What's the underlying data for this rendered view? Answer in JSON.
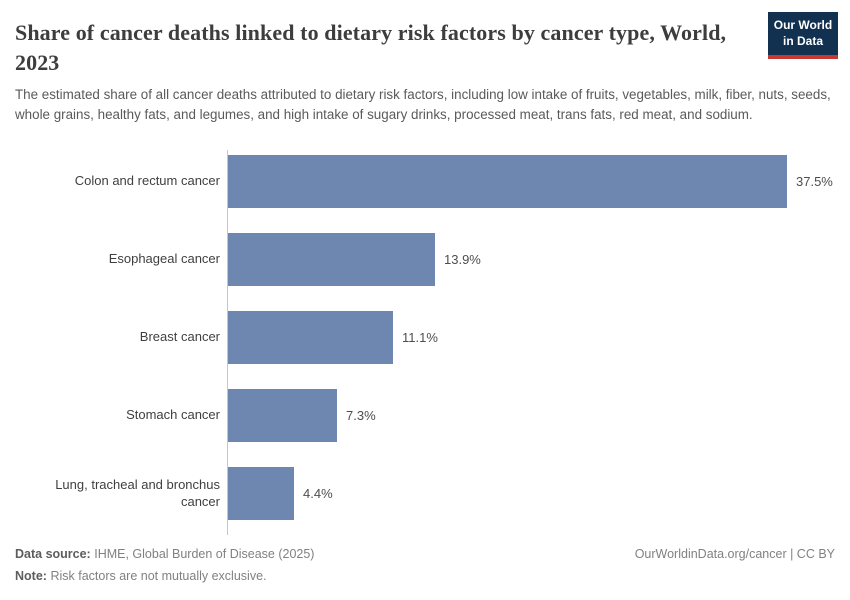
{
  "header": {
    "title": "Share of cancer deaths linked to dietary risk factors by cancer type, World, 2023",
    "subtitle": "The estimated share of all cancer deaths attributed to dietary risk factors, including low intake of fruits, vegetables, milk, fiber, nuts, seeds, whole grains, healthy fats, and legumes, and high intake of sugary drinks, processed meat, trans fats, red meat, and sodium.",
    "logo": {
      "line1": "Our World",
      "line2": "in Data",
      "bg_color": "#12304f",
      "accent_color": "#c53932"
    }
  },
  "chart_data": {
    "type": "bar",
    "orientation": "horizontal",
    "title": "Share of cancer deaths linked to dietary risk factors by cancer type, World, 2023",
    "categories": [
      "Colon and rectum cancer",
      "Esophageal cancer",
      "Breast cancer",
      "Stomach cancer",
      "Lung, tracheal and bronchus cancer"
    ],
    "values": [
      37.5,
      13.9,
      11.1,
      7.3,
      4.4
    ],
    "value_labels": [
      "37.5%",
      "13.9%",
      "11.1%",
      "7.3%",
      "4.4%"
    ],
    "unit": "%",
    "bar_color": "#6d87b1",
    "xlim": [
      0,
      40
    ],
    "grid": false,
    "legend": "none",
    "xlabel": "",
    "ylabel": ""
  },
  "footer": {
    "data_source_label": "Data source:",
    "data_source_value": "IHME, Global Burden of Disease (2025)",
    "note_label": "Note:",
    "note_value": "Risk factors are not mutually exclusive.",
    "credit": "OurWorldinData.org/cancer | CC BY"
  }
}
